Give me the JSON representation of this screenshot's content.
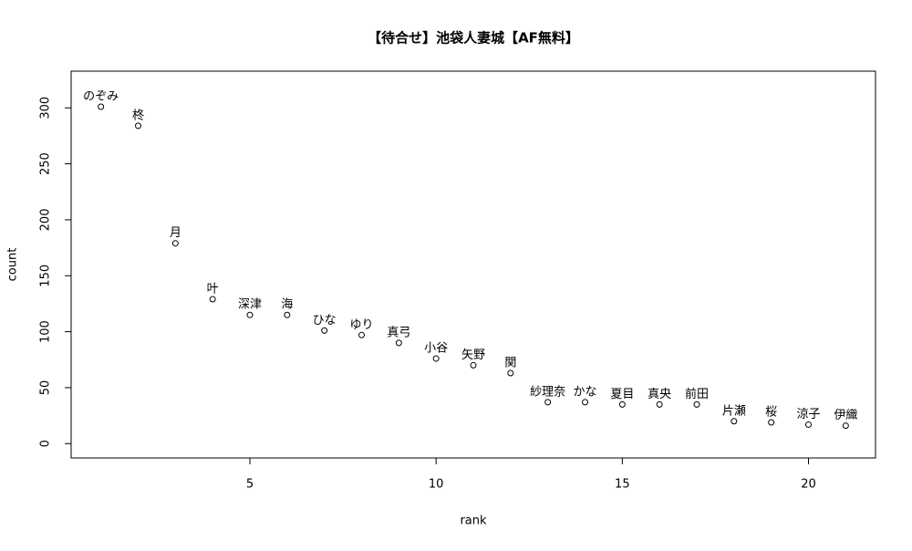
{
  "chart_data": {
    "type": "scatter",
    "title": "【待合せ】池袋人妻城【AF無料】",
    "x_label": "rank",
    "y_label": "count",
    "x": [
      1,
      2,
      3,
      4,
      5,
      6,
      7,
      8,
      9,
      10,
      11,
      12,
      13,
      14,
      15,
      16,
      17,
      18,
      19,
      20,
      21
    ],
    "values": [
      301,
      284,
      179,
      129,
      115,
      115,
      101,
      97,
      90,
      76,
      70,
      63,
      37,
      37,
      35,
      35,
      35,
      20,
      19,
      17,
      16
    ],
    "point_labels": [
      "のぞみ",
      "柊",
      "月",
      "叶",
      "深津",
      "海",
      "ひな",
      "ゆり",
      "真弓",
      "小谷",
      "矢野",
      "関",
      "紗理奈",
      "かな",
      "夏目",
      "真央",
      "前田",
      "片瀬",
      "桜",
      "涼子",
      "伊織"
    ],
    "color": "#000000",
    "xlim": [
      0.2,
      21.8
    ],
    "xticks": [
      5,
      10,
      15,
      20
    ],
    "ylim": [
      -12.8,
      332.8
    ],
    "yticks": [
      0,
      50,
      100,
      150,
      200,
      250,
      300
    ]
  }
}
